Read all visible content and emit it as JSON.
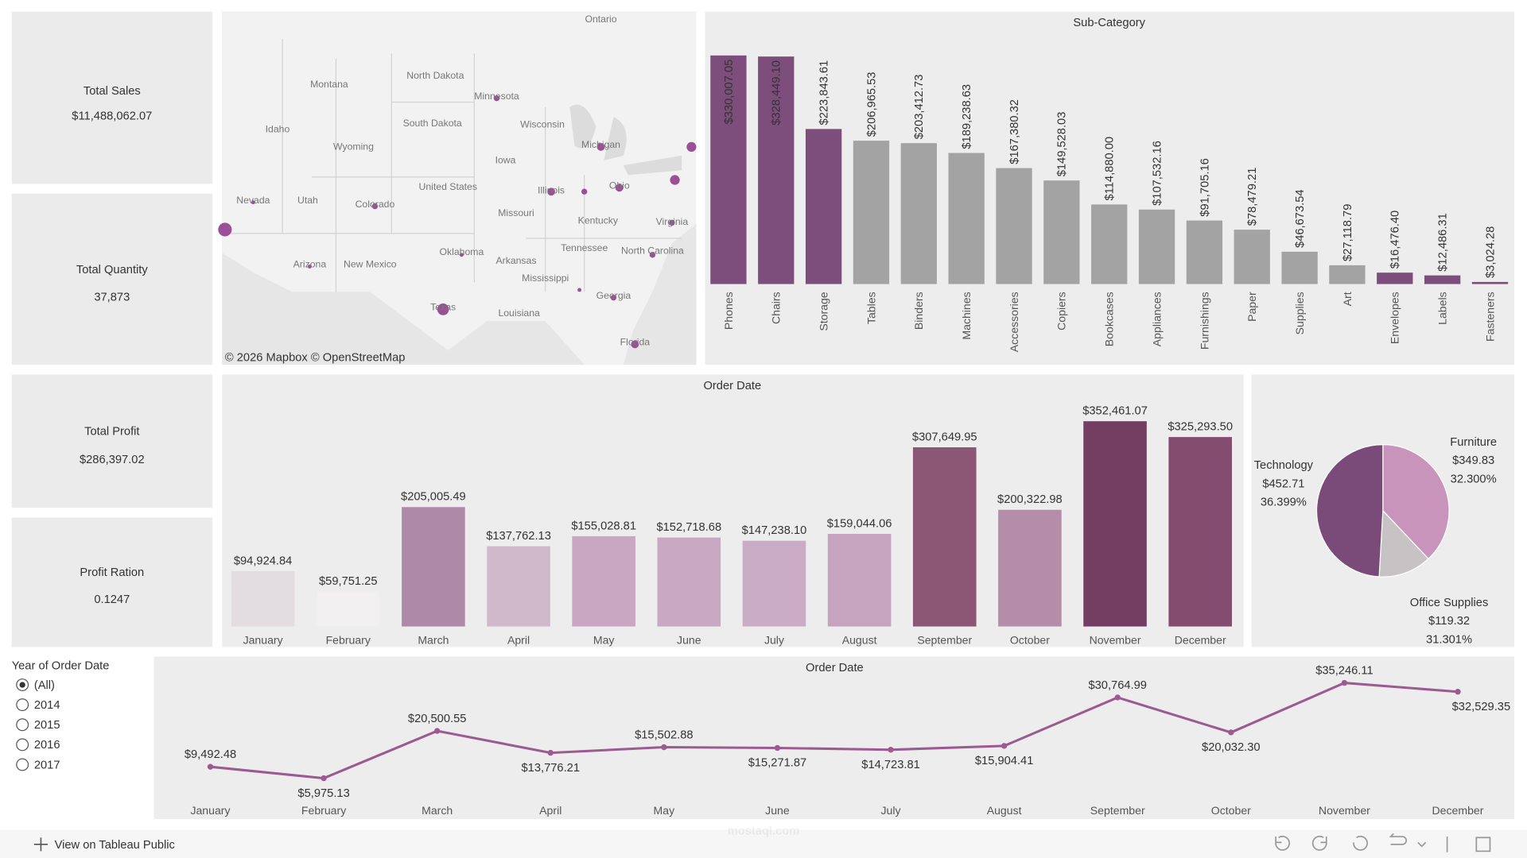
{
  "kpis": [
    {
      "label": "Total Sales",
      "value": "$11,488,062.07"
    },
    {
      "label": "Total Quantity",
      "value": "37,873"
    },
    {
      "label": "Total Profit",
      "value": "$286,397.02"
    },
    {
      "label": "Profit Ration",
      "value": "0.1247"
    }
  ],
  "map": {
    "labels": [
      "Ontario",
      "Montana",
      "North Dakota",
      "Minnesota",
      "South Dakota",
      "Wisconsin",
      "Idaho",
      "Wyoming",
      "Michigan",
      "Iowa",
      "United States",
      "Nevada",
      "Utah",
      "Colorado",
      "Illinois",
      "Ohio",
      "Missouri",
      "Kentucky",
      "Virginia",
      "Oklahoma",
      "Tennessee",
      "North Carolina",
      "Arizona",
      "New Mexico",
      "Arkansas",
      "Mississippi",
      "Georgia",
      "Texas",
      "Louisiana",
      "Florida"
    ],
    "attribution": "© 2026 Mapbox  © OpenStreetMap"
  },
  "chart_data": [
    {
      "type": "bar",
      "title": "Sub-Category",
      "categories": [
        "Phones",
        "Chairs",
        "Storage",
        "Tables",
        "Binders",
        "Machines",
        "Accessories",
        "Copiers",
        "Bookcases",
        "Appliances",
        "Furnishings",
        "Paper",
        "Supplies",
        "Art",
        "Envelopes",
        "Labels",
        "Fasteners"
      ],
      "values": [
        330007.05,
        328449.1,
        223843.61,
        206965.53,
        203412.73,
        189238.63,
        167380.32,
        149528.03,
        114880.0,
        107532.16,
        91705.16,
        78479.21,
        46673.54,
        27118.79,
        16476.4,
        12486.31,
        3024.28
      ],
      "value_labels": [
        "$330,007.05",
        "$328,449.10",
        "$223,843.61",
        "$206,965.53",
        "$203,412.73",
        "$189,238.63",
        "$167,380.32",
        "$149,528.03",
        "$114,880.00",
        "$107,532.16",
        "$91,705.16",
        "$78,479.21",
        "$46,673.54",
        "$27,118.79",
        "$16,476.40",
        "$12,486.31",
        "$3,024.28"
      ],
      "colors": [
        "#7d4e7b",
        "#7d4e7b",
        "#7d4e7b",
        "#a3a3a3",
        "#a3a3a3",
        "#a3a3a3",
        "#a3a3a3",
        "#a3a3a3",
        "#a3a3a3",
        "#a3a3a3",
        "#a3a3a3",
        "#a3a3a3",
        "#a3a3a3",
        "#a3a3a3",
        "#7d4e7b",
        "#7d4e7b",
        "#7d4e7b"
      ]
    },
    {
      "type": "bar",
      "title": "Order Date",
      "categories": [
        "January",
        "February",
        "March",
        "April",
        "May",
        "June",
        "July",
        "August",
        "September",
        "October",
        "November",
        "December"
      ],
      "values": [
        94924.84,
        59751.25,
        205005.49,
        137762.13,
        155028.81,
        152718.68,
        147238.1,
        159044.06,
        307649.95,
        200322.98,
        352461.07,
        325293.5
      ],
      "value_labels": [
        "$94,924.84",
        "$59,751.25",
        "$205,005.49",
        "$137,762.13",
        "$155,028.81",
        "$152,718.68",
        "$147,238.10",
        "$159,044.06",
        "$307,649.95",
        "$200,322.98",
        "$352,461.07",
        "$325,293.50"
      ],
      "colors": [
        "#e3dde1",
        "#f1eff0",
        "#ae89a8",
        "#d0b9cb",
        "#c9a7c2",
        "#c9a8c3",
        "#cbacc6",
        "#c6a4bf",
        "#8b5775",
        "#b48ea9",
        "#743e63",
        "#844d6f"
      ]
    },
    {
      "type": "pie",
      "categories": [
        "Furniture",
        "Office Supplies",
        "Technology"
      ],
      "values": [
        349.83,
        119.32,
        452.71
      ],
      "value_labels": [
        "$349.83",
        "$119.32",
        "$452.71"
      ],
      "percents": [
        32.3,
        31.301,
        36.399
      ],
      "percent_labels": [
        "32.300%",
        "31.301%",
        "36.399%"
      ],
      "colors": [
        "#c994bb",
        "#c7c2c3",
        "#7a4b78"
      ]
    },
    {
      "type": "line",
      "title": "Order Date",
      "categories": [
        "January",
        "February",
        "March",
        "April",
        "May",
        "June",
        "July",
        "August",
        "September",
        "October",
        "November",
        "December"
      ],
      "values": [
        9492.48,
        5975.13,
        20500.55,
        13776.21,
        15502.88,
        15271.87,
        14723.81,
        15904.41,
        30764.99,
        20032.3,
        35246.11,
        32529.35
      ],
      "value_labels": [
        "$9,492.48",
        "$5,975.13",
        "$20,500.55",
        "$13,776.21",
        "$15,502.88",
        "$15,271.87",
        "$14,723.81",
        "$15,904.41",
        "$30,764.99",
        "$20,032.30",
        "$35,246.11",
        "$32,529.35"
      ],
      "color": "#9b5a92"
    }
  ],
  "filter": {
    "title": "Year of Order Date",
    "options": [
      "(All)",
      "2014",
      "2015",
      "2016",
      "2017"
    ],
    "selected": 0
  },
  "footer": {
    "link": "View on Tableau Public",
    "watermark": "mostaql.com"
  }
}
